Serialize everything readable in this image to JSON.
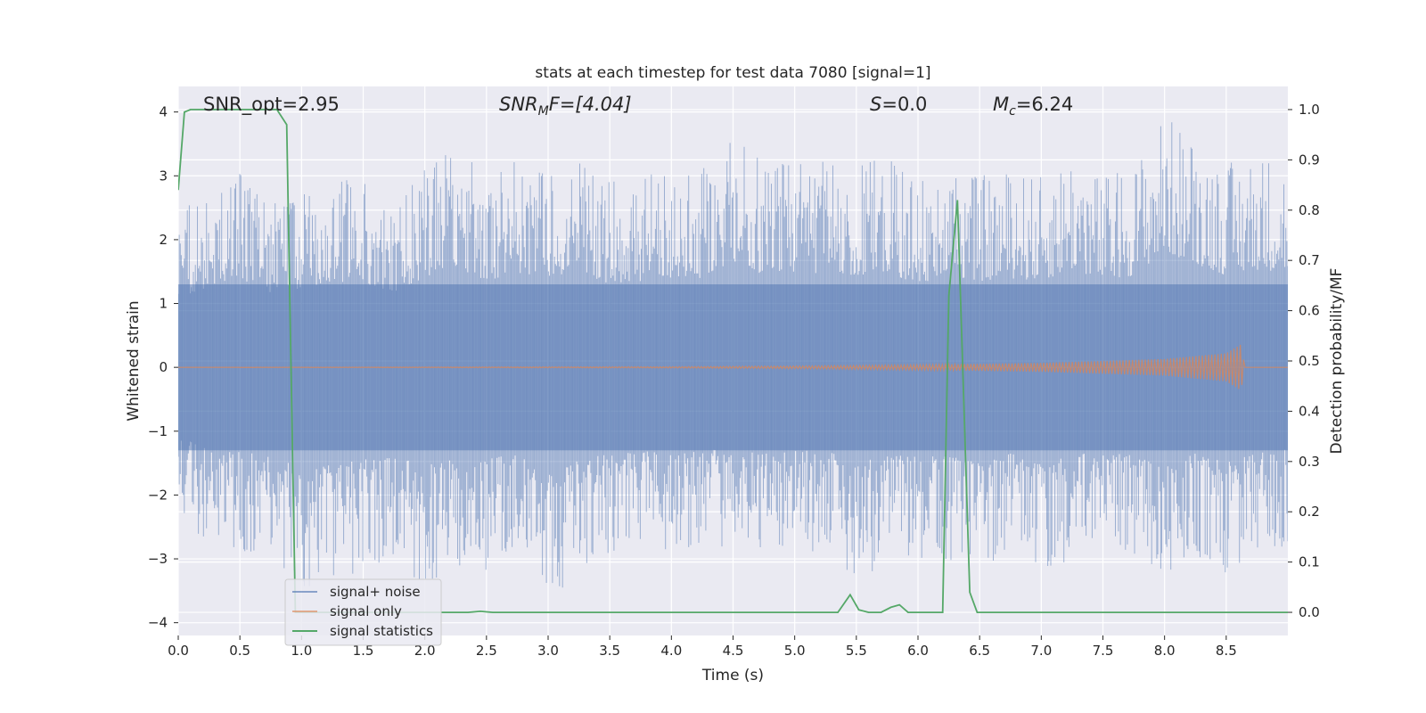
{
  "chart_data": {
    "type": "line",
    "title": "stats at each timestep for test data 7080 [signal=1]",
    "xlabel": "Time (s)",
    "ylabel": "Whitened strain",
    "y2label": "Detection probability/MF",
    "xlim": [
      0.0,
      9.0
    ],
    "ylim": [
      -4.2,
      4.4
    ],
    "y2lim": [
      -0.046,
      1.046
    ],
    "x_ticks": [
      "0.0",
      "0.5",
      "1.0",
      "1.5",
      "2.0",
      "2.5",
      "3.0",
      "3.5",
      "4.0",
      "4.5",
      "5.0",
      "5.5",
      "6.0",
      "6.5",
      "7.0",
      "7.5",
      "8.0",
      "8.5"
    ],
    "y_ticks": [
      "4",
      "3",
      "2",
      "1",
      "0",
      "−1",
      "−2",
      "−3",
      "−4"
    ],
    "y2_ticks": [
      "1.0",
      "0.9",
      "0.8",
      "0.7",
      "0.6",
      "0.5",
      "0.4",
      "0.3",
      "0.2",
      "0.1",
      "0.0"
    ],
    "grid": true,
    "legend_position": "lower-left",
    "annotations": {
      "snr_opt": "SNR_opt=2.95",
      "snr_mf_sym": "SNR",
      "snr_mf_sub": "M",
      "snr_mf_rest": "F=[4.04]",
      "s_sym": "S",
      "s_rest": "=0.0",
      "mc_sym": "M",
      "mc_sub": "c",
      "mc_rest": "=6.24"
    },
    "series": [
      {
        "name": "signal+ noise",
        "color": "#4c72b0",
        "envelope_upper": [
          [
            0.0,
            2.4
          ],
          [
            0.25,
            2.8
          ],
          [
            0.5,
            3.1
          ],
          [
            0.75,
            2.6
          ],
          [
            1.0,
            2.7
          ],
          [
            1.25,
            3.0
          ],
          [
            1.5,
            2.9
          ],
          [
            1.75,
            2.6
          ],
          [
            2.0,
            3.1
          ],
          [
            2.25,
            3.5
          ],
          [
            2.5,
            3.0
          ],
          [
            2.75,
            3.3
          ],
          [
            3.0,
            3.1
          ],
          [
            3.25,
            3.3
          ],
          [
            3.5,
            2.9
          ],
          [
            3.75,
            3.0
          ],
          [
            4.0,
            3.1
          ],
          [
            4.25,
            3.1
          ],
          [
            4.5,
            3.7
          ],
          [
            4.75,
            3.2
          ],
          [
            5.0,
            3.2
          ],
          [
            5.25,
            3.3
          ],
          [
            5.5,
            3.2
          ],
          [
            5.75,
            3.3
          ],
          [
            6.0,
            2.9
          ],
          [
            6.25,
            3.2
          ],
          [
            6.5,
            3.0
          ],
          [
            6.75,
            3.1
          ],
          [
            7.0,
            3.0
          ],
          [
            7.25,
            3.4
          ],
          [
            7.5,
            3.0
          ],
          [
            7.75,
            3.2
          ],
          [
            8.0,
            4.0
          ],
          [
            8.25,
            3.6
          ],
          [
            8.5,
            3.2
          ],
          [
            8.75,
            3.4
          ],
          [
            9.0,
            3.3
          ]
        ],
        "envelope_lower": [
          [
            0.0,
            -2.4
          ],
          [
            0.25,
            -2.8
          ],
          [
            0.5,
            -2.9
          ],
          [
            0.75,
            -3.1
          ],
          [
            1.0,
            -3.5
          ],
          [
            1.25,
            -3.4
          ],
          [
            1.5,
            -3.2
          ],
          [
            1.75,
            -3.1
          ],
          [
            2.0,
            -3.4
          ],
          [
            2.25,
            -3.2
          ],
          [
            2.5,
            -3.2
          ],
          [
            2.75,
            -3.0
          ],
          [
            3.0,
            -3.7
          ],
          [
            3.25,
            -3.2
          ],
          [
            3.5,
            -3.0
          ],
          [
            3.75,
            -2.9
          ],
          [
            4.0,
            -3.0
          ],
          [
            4.25,
            -2.9
          ],
          [
            4.5,
            -2.8
          ],
          [
            4.75,
            -3.0
          ],
          [
            5.0,
            -2.9
          ],
          [
            5.25,
            -2.9
          ],
          [
            5.5,
            -3.3
          ],
          [
            5.75,
            -3.1
          ],
          [
            6.0,
            -3.0
          ],
          [
            6.25,
            -3.1
          ],
          [
            6.5,
            -3.3
          ],
          [
            6.75,
            -3.0
          ],
          [
            7.0,
            -3.3
          ],
          [
            7.25,
            -3.0
          ],
          [
            7.5,
            -3.0
          ],
          [
            7.75,
            -3.0
          ],
          [
            8.0,
            -3.4
          ],
          [
            8.25,
            -3.0
          ],
          [
            8.5,
            -3.3
          ],
          [
            8.75,
            -3.0
          ],
          [
            9.0,
            -2.8
          ]
        ]
      },
      {
        "name": "signal only",
        "color": "#dd8452",
        "envelope_upper": [
          [
            0.0,
            0.0
          ],
          [
            4.0,
            0.01
          ],
          [
            5.0,
            0.02
          ],
          [
            6.0,
            0.04
          ],
          [
            7.0,
            0.07
          ],
          [
            8.0,
            0.13
          ],
          [
            8.5,
            0.22
          ],
          [
            8.62,
            0.36
          ],
          [
            8.65,
            0.0
          ],
          [
            9.0,
            0.0
          ]
        ],
        "envelope_lower": [
          [
            0.0,
            0.0
          ],
          [
            4.0,
            -0.01
          ],
          [
            5.0,
            -0.02
          ],
          [
            6.0,
            -0.04
          ],
          [
            7.0,
            -0.07
          ],
          [
            8.0,
            -0.13
          ],
          [
            8.5,
            -0.22
          ],
          [
            8.62,
            -0.36
          ],
          [
            8.65,
            0.0
          ],
          [
            9.0,
            0.0
          ]
        ]
      },
      {
        "name": "signal statistics",
        "color": "#55a868",
        "axis": "right",
        "points": [
          [
            0.0,
            0.84
          ],
          [
            0.05,
            0.995
          ],
          [
            0.1,
            1.0
          ],
          [
            0.8,
            1.0
          ],
          [
            0.88,
            0.97
          ],
          [
            0.95,
            0.0
          ],
          [
            1.0,
            0.0
          ],
          [
            2.35,
            0.0
          ],
          [
            2.45,
            0.002
          ],
          [
            2.55,
            0.0
          ],
          [
            5.35,
            0.0
          ],
          [
            5.45,
            0.035
          ],
          [
            5.52,
            0.005
          ],
          [
            5.6,
            0.0
          ],
          [
            5.7,
            0.0
          ],
          [
            5.78,
            0.01
          ],
          [
            5.85,
            0.015
          ],
          [
            5.92,
            0.0
          ],
          [
            6.2,
            0.0
          ],
          [
            6.25,
            0.63
          ],
          [
            6.32,
            0.82
          ],
          [
            6.42,
            0.04
          ],
          [
            6.48,
            0.0
          ],
          [
            6.6,
            0.0
          ],
          [
            9.0,
            0.0
          ]
        ]
      }
    ]
  }
}
